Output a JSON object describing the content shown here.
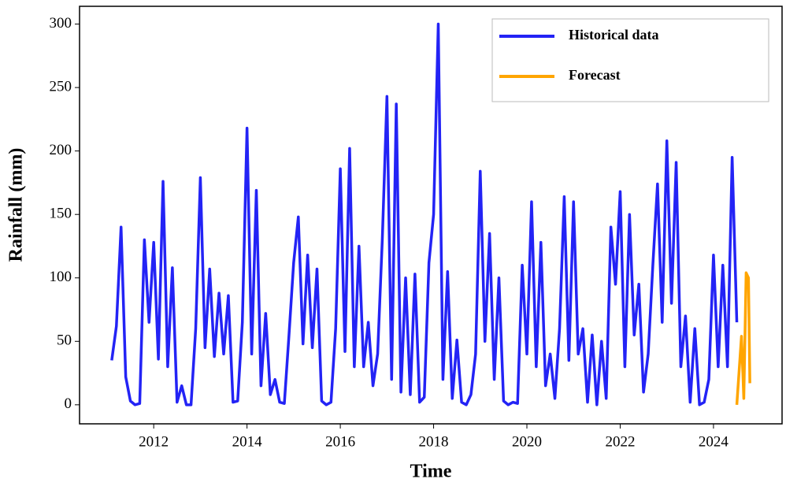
{
  "chart_data": {
    "type": "line",
    "xlabel": "Time",
    "ylabel": "Rainfall (mm)",
    "xlim": [
      2010.41,
      2025.47
    ],
    "ylim": [
      -15,
      314
    ],
    "xticks": [
      2012,
      2014,
      2016,
      2018,
      2020,
      2022,
      2024
    ],
    "yticks": [
      0,
      50,
      100,
      150,
      200,
      250,
      300
    ],
    "legend": "upper right",
    "series": [
      {
        "name": "Historical data",
        "color": "#2323f5",
        "x": [
          2011.1,
          2011.2,
          2011.3,
          2011.4,
          2011.5,
          2011.6,
          2011.7,
          2011.8,
          2011.9,
          2012.0,
          2012.1,
          2012.2,
          2012.3,
          2012.4,
          2012.5,
          2012.6,
          2012.7,
          2012.8,
          2012.9,
          2013.0,
          2013.1,
          2013.2,
          2013.3,
          2013.4,
          2013.5,
          2013.6,
          2013.7,
          2013.8,
          2013.9,
          2014.0,
          2014.1,
          2014.2,
          2014.3,
          2014.4,
          2014.5,
          2014.6,
          2014.7,
          2014.8,
          2014.9,
          2015.0,
          2015.1,
          2015.2,
          2015.3,
          2015.4,
          2015.5,
          2015.6,
          2015.7,
          2015.8,
          2015.9,
          2016.0,
          2016.1,
          2016.2,
          2016.3,
          2016.4,
          2016.5,
          2016.6,
          2016.7,
          2016.8,
          2016.9,
          2017.0,
          2017.1,
          2017.2,
          2017.3,
          2017.4,
          2017.5,
          2017.6,
          2017.7,
          2017.8,
          2017.9,
          2018.0,
          2018.1,
          2018.2,
          2018.3,
          2018.4,
          2018.5,
          2018.6,
          2018.7,
          2018.8,
          2018.9,
          2019.0,
          2019.1,
          2019.2,
          2019.3,
          2019.4,
          2019.5,
          2019.6,
          2019.7,
          2019.8,
          2019.9,
          2020.0,
          2020.1,
          2020.2,
          2020.3,
          2020.4,
          2020.5,
          2020.6,
          2020.7,
          2020.8,
          2020.9,
          2021.0,
          2021.1,
          2021.2,
          2021.3,
          2021.4,
          2021.5,
          2021.6,
          2021.7,
          2021.8,
          2021.9,
          2022.0,
          2022.1,
          2022.2,
          2022.3,
          2022.4,
          2022.5,
          2022.6,
          2022.7,
          2022.8,
          2022.9,
          2023.0,
          2023.1,
          2023.2,
          2023.3,
          2023.4,
          2023.5,
          2023.6,
          2023.7,
          2023.8,
          2023.9,
          2024.0,
          2024.1,
          2024.2,
          2024.3,
          2024.4,
          2024.5
        ],
        "values": [
          35,
          62,
          140,
          22,
          3,
          0,
          1,
          130,
          65,
          128,
          36,
          176,
          30,
          108,
          2,
          15,
          0,
          0,
          60,
          179,
          45,
          107,
          38,
          88,
          40,
          86,
          2,
          3,
          65,
          218,
          40,
          169,
          15,
          72,
          8,
          20,
          2,
          1,
          55,
          112,
          148,
          48,
          118,
          45,
          107,
          3,
          0,
          2,
          60,
          186,
          42,
          202,
          30,
          125,
          30,
          65,
          15,
          40,
          130,
          243,
          20,
          237,
          10,
          100,
          8,
          103,
          2,
          6,
          112,
          150,
          300,
          20,
          105,
          5,
          51,
          2,
          0,
          8,
          40,
          184,
          50,
          135,
          20,
          100,
          3,
          0,
          2,
          1,
          110,
          40,
          160,
          30,
          128,
          15,
          40,
          5,
          60,
          164,
          35,
          160,
          40,
          60,
          2,
          55,
          0,
          50,
          5,
          140,
          95,
          168,
          30,
          150,
          55,
          95,
          10,
          40,
          110,
          174,
          65,
          208,
          80,
          191,
          30,
          70,
          2,
          60,
          0,
          2,
          20,
          118,
          30,
          110,
          30,
          195,
          65
        ]
      },
      {
        "name": "Forecast",
        "color": "#ffa500",
        "x": [
          2024.5,
          2024.6,
          2024.65,
          2024.7,
          2024.75,
          2024.78
        ],
        "values": [
          0,
          54,
          5,
          104,
          100,
          17
        ]
      }
    ]
  }
}
